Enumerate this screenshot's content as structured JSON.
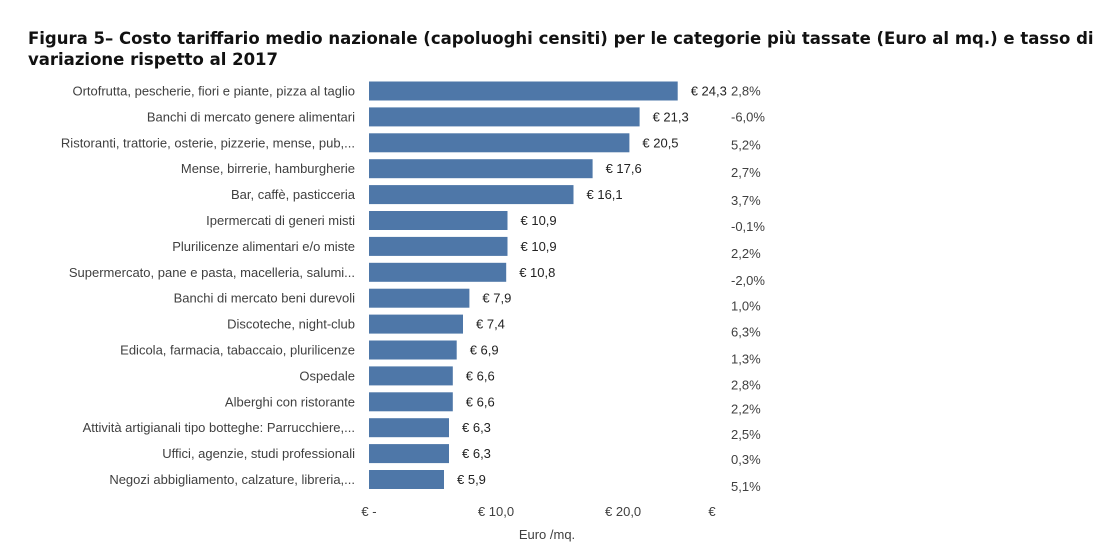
{
  "chart_data": {
    "type": "bar",
    "orientation": "horizontal",
    "title": "Figura 5– Costo tariffario medio nazionale (capoluoghi censiti) per le categorie più tassate (Euro al mq.) e tasso di variazione rispetto al 2017",
    "xlabel": "Euro /mq.",
    "xlim": [
      0,
      27
    ],
    "x_ticks": [
      {
        "value": 0,
        "label": "€ -"
      },
      {
        "value": 10,
        "label": "€ 10,0"
      },
      {
        "value": 20,
        "label": "€ 20,0"
      },
      {
        "value": 27,
        "label": "€"
      }
    ],
    "categories": [
      "Ortofrutta, pescherie, fiori e piante, pizza al taglio",
      "Banchi di mercato genere alimentari",
      "Ristoranti, trattorie, osterie, pizzerie, mense, pub,...",
      "Mense, birrerie, hamburgherie",
      "Bar, caffè, pasticceria",
      "Ipermercati di generi misti",
      "Plurilicenze alimentari e/o miste",
      "Supermercato, pane e pasta, macelleria, salumi...",
      "Banchi di mercato beni durevoli",
      "Discoteche, night-club",
      "Edicola, farmacia, tabaccaio, plurilicenze",
      "Ospedale",
      "Alberghi con ristorante",
      "Attività artigianali tipo botteghe: Parrucchiere,...",
      "Uffici, agenzie, studi professionali",
      "Negozi abbigliamento, calzature, libreria,..."
    ],
    "values": [
      24.3,
      21.3,
      20.5,
      17.6,
      16.1,
      10.9,
      10.9,
      10.8,
      7.9,
      7.4,
      6.9,
      6.6,
      6.6,
      6.3,
      6.3,
      5.9
    ],
    "value_labels": [
      "€ 24,3",
      "€ 21,3",
      "€ 20,5",
      "€ 17,6",
      "€ 16,1",
      "€ 10,9",
      "€ 10,9",
      "€ 10,8",
      "€ 7,9",
      "€ 7,4",
      "€ 6,9",
      "€ 6,6",
      "€ 6,6",
      "€ 6,3",
      "€ 6,3",
      "€ 5,9"
    ],
    "variation_labels": [
      "2,8%",
      "-6,0%",
      "5,2%",
      "2,7%",
      "3,7%",
      "-0,1%",
      "2,2%",
      "-2,0%",
      "1,0%",
      "6,3%",
      "1,3%",
      "2,8%",
      "2,2%",
      "2,5%",
      "0,3%",
      "5,1%"
    ],
    "bar_color": "#4e77a8",
    "grid": false,
    "legend": "none"
  }
}
